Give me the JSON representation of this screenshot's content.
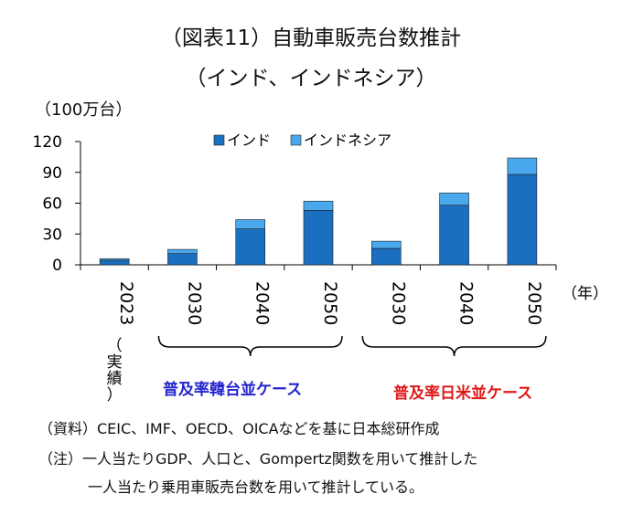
{
  "title": "（図表11）自動車販売台数推計",
  "subtitle": "（インド、インドネシア）",
  "unit_label": "（100万台）",
  "year_unit": "（年）",
  "jisseki_label": "（実績）",
  "group_labels": {
    "korea": "普及率韓台並ケース",
    "japan_us": "普及率日米並ケース"
  },
  "notes": {
    "source": "（資料）CEIC、IMF、OECD、OICAなどを基に日本総研作成",
    "note_line1": "（注）一人当たりGDP、人口と、Gompertz関数を用いて推計した",
    "note_line2": "一人当たり乗用車販売台数を用いて推計している。"
  },
  "colors": {
    "india": "#1a6fc0",
    "indonesia": "#4aa8ec",
    "korea_label": "#2424d0",
    "japan_label": "#e01818"
  },
  "chart_data": {
    "type": "bar",
    "stacked": true,
    "categories": [
      "2023",
      "2030",
      "2040",
      "2050",
      "2030",
      "2040",
      "2050"
    ],
    "series": [
      {
        "name": "インド",
        "values": [
          4.5,
          11,
          35,
          53,
          16,
          58,
          88
        ]
      },
      {
        "name": "インドネシア",
        "values": [
          1.5,
          4,
          9,
          9,
          7,
          12,
          16
        ]
      }
    ],
    "ylim": [
      0,
      120
    ],
    "yticks": [
      0,
      30,
      60,
      90,
      120
    ],
    "legend_position": "top"
  }
}
